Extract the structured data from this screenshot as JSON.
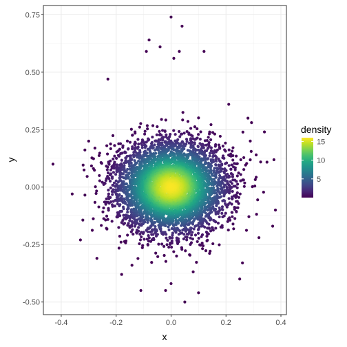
{
  "chart_data": {
    "type": "scatter",
    "title": "",
    "xlabel": "x",
    "ylabel": "y",
    "xlim": [
      -0.465,
      0.42
    ],
    "ylim": [
      -0.555,
      0.79
    ],
    "x_ticks": [
      -0.4,
      -0.2,
      0.0,
      0.2,
      0.4
    ],
    "x_tick_labels": [
      "-0.4",
      "-0.2",
      "0.0",
      "0.2",
      "0.4"
    ],
    "y_ticks": [
      -0.5,
      -0.25,
      0.0,
      0.25,
      0.5,
      0.75
    ],
    "y_tick_labels": [
      "-0.50",
      "-0.25",
      "0.00",
      "0.25",
      "0.50",
      "0.75"
    ],
    "grid": true,
    "color_scale": {
      "name": "density",
      "palette": "viridis",
      "range": [
        0,
        16
      ],
      "breaks": [
        5,
        10,
        15
      ],
      "break_labels": [
        "5",
        "10",
        "15"
      ]
    },
    "legend_position": "right",
    "distribution": {
      "center": [
        0.0,
        0.0
      ],
      "sd_x": 0.1,
      "sd_y": 0.1,
      "n_points": 5000
    },
    "outliers": [
      [
        0.0,
        0.74
      ],
      [
        0.04,
        0.7
      ],
      [
        -0.08,
        0.64
      ],
      [
        -0.04,
        0.61
      ],
      [
        -0.09,
        0.59
      ],
      [
        0.12,
        0.59
      ],
      [
        0.03,
        0.59
      ],
      [
        0.01,
        0.56
      ],
      [
        -0.43,
        0.1
      ],
      [
        0.38,
        -0.1
      ],
      [
        0.37,
        -0.17
      ],
      [
        0.05,
        -0.5
      ],
      [
        -0.11,
        -0.45
      ],
      [
        0.1,
        -0.46
      ],
      [
        0.0,
        -0.42
      ],
      [
        -0.02,
        -0.45
      ],
      [
        -0.33,
        -0.23
      ],
      [
        0.32,
        -0.22
      ],
      [
        -0.36,
        -0.03
      ],
      [
        -0.23,
        0.47
      ],
      [
        0.21,
        0.36
      ],
      [
        0.28,
        0.3
      ],
      [
        0.34,
        0.24
      ],
      [
        0.31,
        0.14
      ],
      [
        -0.3,
        0.2
      ],
      [
        0.25,
        -0.4
      ],
      [
        0.02,
        -0.3
      ],
      [
        -0.27,
        -0.31
      ],
      [
        0.26,
        -0.33
      ],
      [
        -0.18,
        -0.38
      ]
    ]
  }
}
